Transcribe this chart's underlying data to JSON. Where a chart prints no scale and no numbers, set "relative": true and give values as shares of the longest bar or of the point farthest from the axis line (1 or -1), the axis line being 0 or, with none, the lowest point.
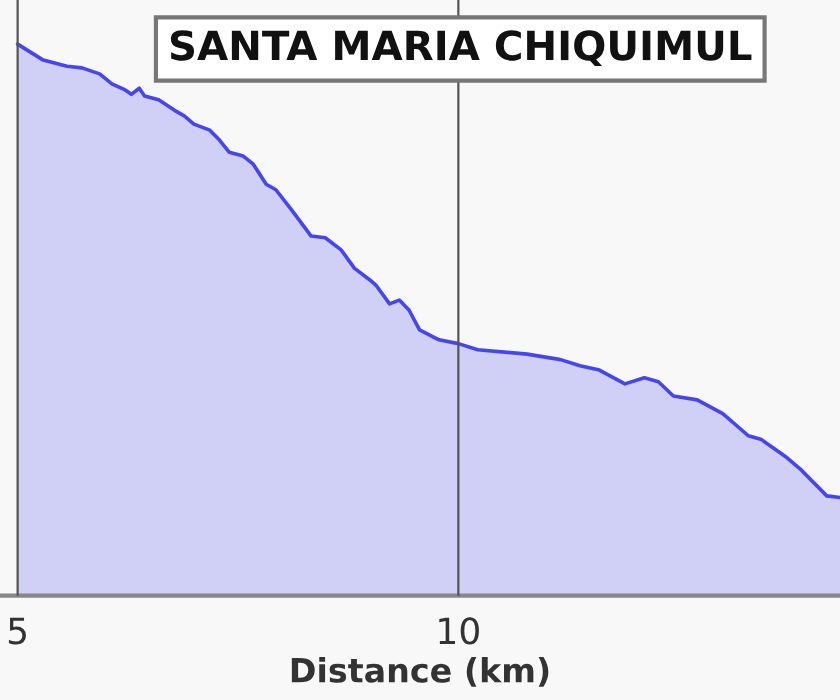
{
  "chart_data": {
    "type": "area",
    "title": "SANTA MARIA CHIQUIMUL",
    "xlabel": "Distance (km)",
    "relative": true,
    "xlim": [
      4.8,
      14.33
    ],
    "xticks": [
      5,
      10
    ],
    "tick_labels": "x",
    "grid": "x",
    "legend": false,
    "marker": "none",
    "line_style": "solid",
    "series": [
      {
        "color": "#4646f0",
        "x": [
          5,
          5.29,
          5.56,
          5.73,
          5.93,
          6.07,
          6.22,
          6.29,
          6.38,
          6.44,
          6.6,
          6.78,
          6.89,
          7.0,
          7.18,
          7.29,
          7.4,
          7.56,
          7.67,
          7.82,
          7.93,
          8.11,
          8.33,
          8.49,
          8.67,
          8.82,
          9.0,
          9.07,
          9.22,
          9.33,
          9.44,
          9.56,
          9.78,
          10.0,
          10.22,
          10.78,
          11.16,
          11.38,
          11.6,
          11.89,
          12.11,
          12.27,
          12.44,
          12.71,
          13.0,
          13.29,
          13.44,
          13.73,
          13.89,
          14.18,
          14.33
        ],
        "values": [
          1.0,
          0.971,
          0.96,
          0.957,
          0.946,
          0.928,
          0.917,
          0.909,
          0.92,
          0.906,
          0.899,
          0.88,
          0.87,
          0.855,
          0.844,
          0.826,
          0.804,
          0.797,
          0.783,
          0.746,
          0.736,
          0.699,
          0.652,
          0.649,
          0.627,
          0.594,
          0.572,
          0.562,
          0.529,
          0.536,
          0.518,
          0.482,
          0.464,
          0.457,
          0.446,
          0.438,
          0.428,
          0.417,
          0.409,
          0.384,
          0.395,
          0.388,
          0.362,
          0.355,
          0.33,
          0.29,
          0.283,
          0.25,
          0.228,
          0.181,
          0.178
        ]
      }
    ]
  }
}
